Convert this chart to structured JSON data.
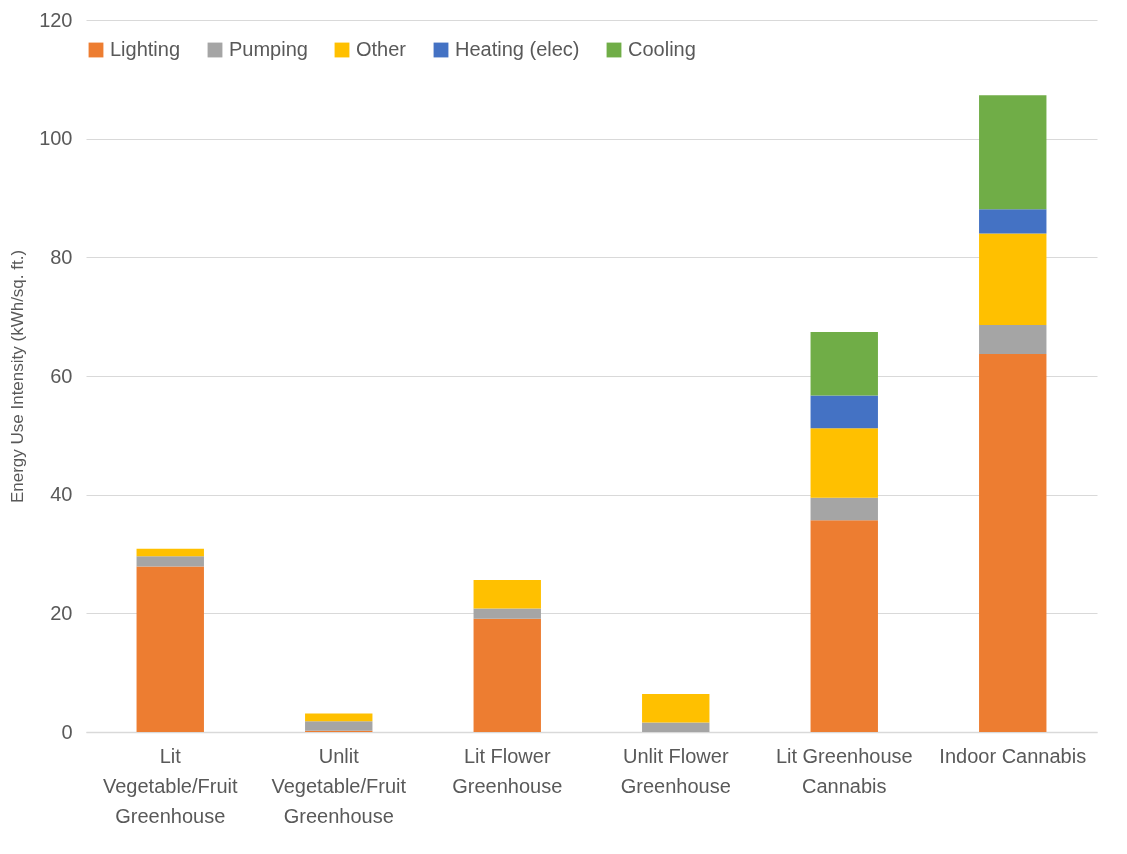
{
  "chart_data": {
    "type": "bar",
    "ylabel": "Energy Use Intensity (kWh/sq. ft.)",
    "categories": [
      "Lit Vegetable/Fruit Greenhouse",
      "Unlit Vegetable/Fruit Greenhouse",
      "Lit Flower Greenhouse",
      "Unlit Flower Greenhouse",
      "Lit Greenhouse Cannabis",
      "Indoor Cannabis"
    ],
    "stacked": true,
    "series": [
      {
        "name": "Lighting",
        "color": "#ed7d31",
        "values": [
          27.9,
          0.2,
          19.1,
          0,
          35.7,
          63.7
        ]
      },
      {
        "name": "Pumping",
        "color": "#a5a5a5",
        "values": [
          1.7,
          1.6,
          1.7,
          1.6,
          3.8,
          4.9
        ]
      },
      {
        "name": "Other",
        "color": "#ffc000",
        "values": [
          1.3,
          1.3,
          4.8,
          4.8,
          11.7,
          15.4
        ]
      },
      {
        "name": "Heating (elec)",
        "color": "#4472c4",
        "values": [
          0,
          0,
          0,
          0,
          5.5,
          4.1
        ]
      },
      {
        "name": "Cooling",
        "color": "#70ad47",
        "values": [
          0,
          0,
          0,
          0,
          10.7,
          19.2
        ]
      }
    ],
    "ylim": [
      0,
      120
    ],
    "yticks": [
      0,
      20,
      40,
      60,
      80,
      100,
      120
    ],
    "grid": "y",
    "legend": "top"
  }
}
